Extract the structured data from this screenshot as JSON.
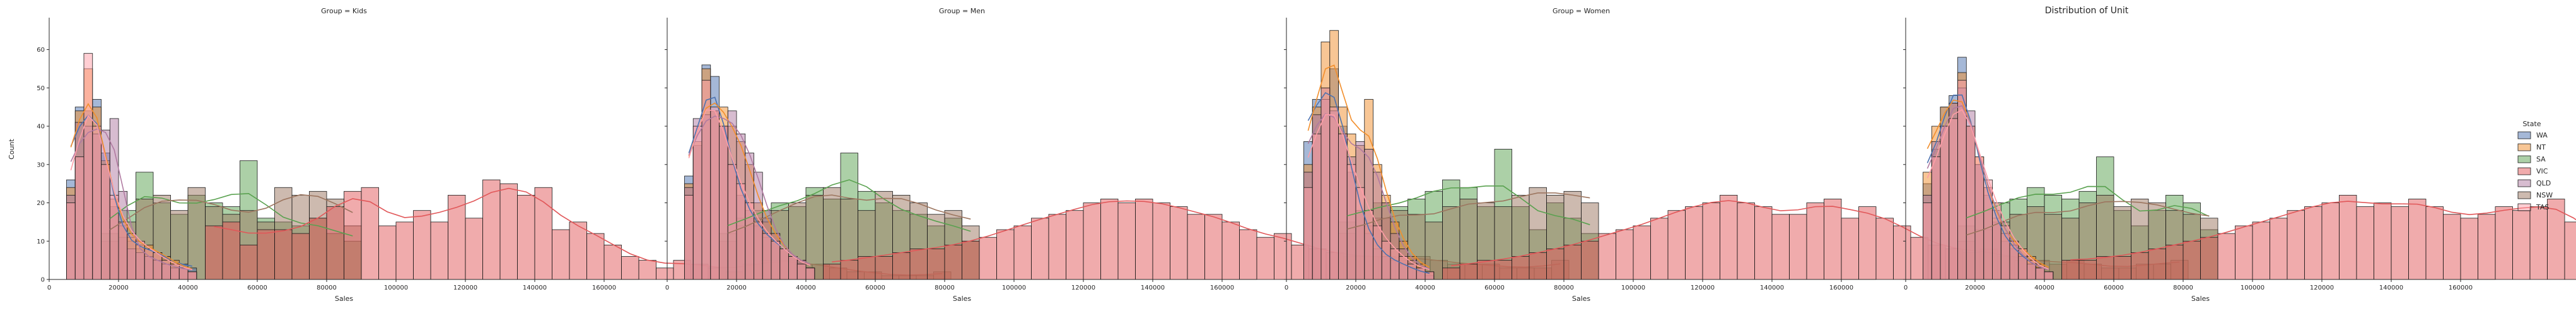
{
  "chart_data": {
    "type": "histogram",
    "title": "Distribution of Unit",
    "xlabel": "Sales",
    "ylabel": "Count",
    "xlim": [
      0,
      170000
    ],
    "ylim": [
      0,
      68
    ],
    "xticks": [
      0,
      20000,
      40000,
      60000,
      80000,
      100000,
      120000,
      140000,
      160000
    ],
    "yticks": [
      0,
      10,
      20,
      30,
      40,
      50,
      60
    ],
    "bins": {
      "WA": [
        5000,
        37500,
        2500
      ],
      "NT": [
        5000,
        37500,
        2500
      ],
      "QLD": [
        5000,
        37500,
        2500
      ],
      "TAS": [
        5000,
        37500,
        2500
      ],
      "SA": [
        15000,
        90000,
        5000
      ],
      "NSW": [
        15000,
        90000,
        5000
      ],
      "VIC": [
        45000,
        162500,
        5000
      ]
    },
    "legend": {
      "title": "State",
      "placement": "center-right",
      "entries": [
        {
          "name": "WA",
          "color": "#4c72b0"
        },
        {
          "name": "NT",
          "color": "#f28e2b"
        },
        {
          "name": "SA",
          "color": "#59a14f"
        },
        {
          "name": "VIC",
          "color": "#e15759"
        },
        {
          "name": "QLD",
          "color": "#b07aa1"
        },
        {
          "name": "NSW",
          "color": "#9c755f"
        },
        {
          "name": "TAS",
          "color": "#ff9da7"
        }
      ]
    },
    "panels": [
      {
        "title": "Group =  Kids",
        "series": {
          "WA": [
            26,
            45,
            44,
            47,
            33,
            19,
            11,
            10,
            8,
            8,
            7,
            6,
            4,
            4,
            3
          ],
          "NT": [
            24,
            44,
            55,
            45,
            31,
            21,
            14,
            11,
            9,
            9,
            7,
            6,
            5,
            3,
            2
          ],
          "QLD": [
            22,
            41,
            40,
            38,
            39,
            42,
            23,
            8,
            7,
            6,
            5,
            4,
            3,
            3,
            2
          ],
          "TAS": [
            20,
            32,
            59,
            40,
            30,
            22,
            15,
            12,
            10,
            8,
            7,
            5,
            4,
            3,
            2
          ],
          "SA": [
            12,
            18,
            28,
            20,
            17,
            22,
            20,
            19,
            31,
            16,
            15,
            14,
            16,
            12,
            10
          ],
          "NSW": [
            10,
            15,
            21,
            22,
            18,
            24,
            19,
            17,
            18,
            15,
            24,
            22,
            23,
            21,
            14
          ],
          "VIC": [
            14,
            15,
            9,
            13,
            13,
            12,
            16,
            19,
            23,
            24,
            14,
            15,
            18,
            15,
            22,
            16,
            26,
            25,
            22,
            24,
            13,
            15,
            12,
            9,
            6,
            5,
            3,
            5,
            4,
            3,
            2,
            4,
            5,
            5,
            4,
            4,
            3,
            2,
            2,
            1,
            1,
            1,
            2
          ]
        }
      },
      {
        "title": "Group =  Men",
        "series": {
          "WA": [
            27,
            35,
            56,
            53,
            40,
            30,
            22,
            18,
            14,
            11,
            10,
            8,
            6,
            5,
            3
          ],
          "NT": [
            25,
            36,
            55,
            44,
            45,
            40,
            36,
            30,
            20,
            15,
            12,
            8,
            6,
            5,
            3
          ],
          "QLD": [
            24,
            42,
            43,
            44,
            40,
            44,
            38,
            33,
            28,
            18,
            12,
            8,
            6,
            5,
            3
          ],
          "TAS": [
            22,
            40,
            52,
            45,
            40,
            30,
            25,
            20,
            15,
            12,
            10,
            8,
            6,
            4,
            3
          ],
          "SA": [
            12,
            16,
            18,
            20,
            19,
            24,
            21,
            33,
            23,
            20,
            18,
            17,
            14,
            16,
            10
          ],
          "NSW": [
            10,
            14,
            16,
            18,
            20,
            22,
            24,
            21,
            18,
            23,
            22,
            20,
            17,
            18,
            14
          ],
          "VIC": [
            4,
            5,
            6,
            6,
            7,
            8,
            8,
            9,
            10,
            11,
            13,
            14,
            16,
            17,
            18,
            20,
            21,
            20,
            21,
            20,
            19,
            17,
            17,
            15,
            13,
            11,
            12,
            9,
            8,
            7,
            6,
            6,
            6,
            5,
            6,
            5,
            4,
            4,
            4,
            3,
            3,
            3,
            5
          ]
        }
      },
      {
        "title": "Group =  Women",
        "series": {
          "WA": [
            36,
            47,
            50,
            55,
            40,
            28,
            18,
            12,
            8,
            6,
            5,
            4,
            3,
            2,
            1
          ],
          "NT": [
            30,
            45,
            62,
            65,
            45,
            38,
            35,
            47,
            30,
            22,
            15,
            10,
            6,
            4,
            2
          ],
          "QLD": [
            28,
            43,
            47,
            44,
            38,
            32,
            36,
            34,
            28,
            20,
            12,
            8,
            5,
            3,
            2
          ],
          "TAS": [
            24,
            38,
            50,
            45,
            38,
            30,
            24,
            18,
            14,
            10,
            8,
            6,
            4,
            3,
            2
          ],
          "SA": [
            15,
            18,
            20,
            19,
            21,
            23,
            26,
            24,
            19,
            34,
            19,
            13,
            20,
            16,
            12
          ],
          "NSW": [
            12,
            14,
            16,
            18,
            17,
            15,
            19,
            21,
            20,
            19,
            22,
            24,
            22,
            23,
            20
          ],
          "VIC": [
            3,
            4,
            5,
            5,
            6,
            7,
            8,
            9,
            10,
            12,
            13,
            14,
            16,
            18,
            19,
            20,
            22,
            20,
            19,
            17,
            17,
            20,
            21,
            16,
            19,
            16,
            14,
            11,
            9,
            8,
            7,
            8,
            6,
            5,
            5,
            4,
            5,
            4,
            3,
            3,
            4,
            4,
            5
          ]
        }
      },
      {
        "title": "",
        "series": {
          "WA": [
            25,
            34,
            45,
            48,
            58,
            40,
            30,
            22,
            15,
            10,
            8,
            6,
            4,
            3,
            2
          ],
          "NT": [
            28,
            40,
            45,
            46,
            54,
            40,
            32,
            24,
            16,
            12,
            10,
            8,
            6,
            4,
            2
          ],
          "QLD": [
            22,
            36,
            40,
            46,
            50,
            44,
            30,
            24,
            18,
            12,
            9,
            6,
            4,
            3,
            2
          ],
          "TAS": [
            20,
            32,
            40,
            42,
            52,
            40,
            32,
            26,
            20,
            14,
            10,
            8,
            5,
            3,
            2
          ],
          "SA": [
            14,
            18,
            20,
            21,
            24,
            22,
            21,
            23,
            32,
            18,
            14,
            18,
            22,
            20,
            13
          ],
          "NSW": [
            10,
            13,
            15,
            17,
            19,
            17,
            16,
            20,
            22,
            19,
            21,
            20,
            18,
            17,
            16
          ],
          "VIC": [
            5,
            5,
            6,
            6,
            7,
            8,
            9,
            10,
            11,
            12,
            14,
            15,
            16,
            18,
            19,
            20,
            22,
            19,
            20,
            19,
            21,
            19,
            17,
            16,
            17,
            19,
            18,
            19,
            21,
            15,
            14,
            9,
            7,
            8,
            5,
            6,
            5,
            4,
            5,
            6,
            5,
            7,
            8
          ]
        }
      }
    ]
  }
}
